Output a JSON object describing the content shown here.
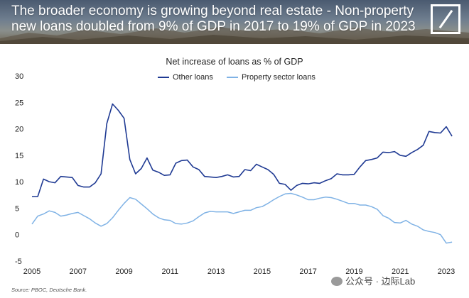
{
  "banner": {
    "title": "The broader economy is growing beyond real estate - Non-property new loans doubled from 9% of GDP in 2017 to 19% of GDP in 2023",
    "logo_icon": "deutsche-bank-logo-icon"
  },
  "chart_data": {
    "type": "line",
    "title": "Net increase of loans as % of GDP",
    "xlabel": "",
    "ylabel": "",
    "xlim": [
      2005,
      2023.5
    ],
    "ylim": [
      -5,
      30
    ],
    "xticks": [
      "2005",
      "2007",
      "2009",
      "2011",
      "2013",
      "2015",
      "2017",
      "2019",
      "2021",
      "2023"
    ],
    "yticks": [
      "30",
      "25",
      "20",
      "15",
      "10",
      "5",
      "0",
      "-5"
    ],
    "grid": false,
    "legend_position": "top-center",
    "series": [
      {
        "name": "Other loans",
        "color": "#1f3a93",
        "x": [
          2005.0,
          2005.25,
          2005.5,
          2005.75,
          2006.0,
          2006.25,
          2006.5,
          2006.75,
          2007.0,
          2007.25,
          2007.5,
          2007.75,
          2008.0,
          2008.25,
          2008.5,
          2008.75,
          2009.0,
          2009.25,
          2009.5,
          2009.75,
          2010.0,
          2010.25,
          2010.5,
          2010.75,
          2011.0,
          2011.25,
          2011.5,
          2011.75,
          2012.0,
          2012.25,
          2012.5,
          2012.75,
          2013.0,
          2013.25,
          2013.5,
          2013.75,
          2014.0,
          2014.25,
          2014.5,
          2014.75,
          2015.0,
          2015.25,
          2015.5,
          2015.75,
          2016.0,
          2016.25,
          2016.5,
          2016.75,
          2017.0,
          2017.25,
          2017.5,
          2017.75,
          2018.0,
          2018.25,
          2018.5,
          2018.75,
          2019.0,
          2019.25,
          2019.5,
          2019.75,
          2020.0,
          2020.25,
          2020.5,
          2020.75,
          2021.0,
          2021.25,
          2021.5,
          2021.75,
          2022.0,
          2022.25,
          2022.5,
          2022.75,
          2023.0,
          2023.25
        ],
        "values": [
          7.2,
          7.2,
          10.5,
          10.0,
          9.8,
          11.0,
          10.9,
          10.8,
          9.3,
          9.0,
          9.0,
          9.8,
          11.5,
          21.0,
          24.7,
          23.5,
          22.0,
          14.2,
          11.5,
          12.5,
          14.5,
          12.2,
          11.8,
          11.2,
          11.3,
          13.5,
          14.0,
          14.1,
          12.8,
          12.3,
          11.0,
          10.9,
          10.8,
          11.0,
          11.3,
          10.9,
          11.0,
          12.3,
          12.1,
          13.3,
          12.8,
          12.3,
          11.4,
          9.7,
          9.5,
          8.4,
          9.3,
          9.7,
          9.6,
          9.8,
          9.7,
          10.2,
          10.6,
          11.5,
          11.3,
          11.3,
          11.4,
          12.8,
          14.0,
          14.2,
          14.5,
          15.6,
          15.5,
          15.7,
          15.0,
          14.8,
          15.5,
          16.1,
          16.9,
          19.5,
          19.3,
          19.2,
          20.4,
          18.6
        ]
      },
      {
        "name": "Property sector loans",
        "color": "#7fb2e5",
        "x": [
          2005.0,
          2005.25,
          2005.5,
          2005.75,
          2006.0,
          2006.25,
          2006.5,
          2006.75,
          2007.0,
          2007.25,
          2007.5,
          2007.75,
          2008.0,
          2008.25,
          2008.5,
          2008.75,
          2009.0,
          2009.25,
          2009.5,
          2009.75,
          2010.0,
          2010.25,
          2010.5,
          2010.75,
          2011.0,
          2011.25,
          2011.5,
          2011.75,
          2012.0,
          2012.25,
          2012.5,
          2012.75,
          2013.0,
          2013.25,
          2013.5,
          2013.75,
          2014.0,
          2014.25,
          2014.5,
          2014.75,
          2015.0,
          2015.25,
          2015.5,
          2015.75,
          2016.0,
          2016.25,
          2016.5,
          2016.75,
          2017.0,
          2017.25,
          2017.5,
          2017.75,
          2018.0,
          2018.25,
          2018.5,
          2018.75,
          2019.0,
          2019.25,
          2019.5,
          2019.75,
          2020.0,
          2020.25,
          2020.5,
          2020.75,
          2021.0,
          2021.25,
          2021.5,
          2021.75,
          2022.0,
          2022.25,
          2022.5,
          2022.75,
          2023.0,
          2023.25
        ],
        "values": [
          2.0,
          3.5,
          3.9,
          4.5,
          4.2,
          3.5,
          3.7,
          4.0,
          4.2,
          3.6,
          3.0,
          2.2,
          1.6,
          2.1,
          3.2,
          4.6,
          5.9,
          7.0,
          6.7,
          5.8,
          4.9,
          3.9,
          3.2,
          2.8,
          2.7,
          2.1,
          2.0,
          2.2,
          2.6,
          3.4,
          4.1,
          4.4,
          4.3,
          4.3,
          4.3,
          4.0,
          4.3,
          4.6,
          4.6,
          5.1,
          5.3,
          5.9,
          6.6,
          7.2,
          7.7,
          7.8,
          7.5,
          7.1,
          6.6,
          6.6,
          6.9,
          7.1,
          7.0,
          6.7,
          6.3,
          5.9,
          5.9,
          5.6,
          5.6,
          5.3,
          4.8,
          3.6,
          3.1,
          2.3,
          2.2,
          2.7,
          2.0,
          1.6,
          0.9,
          0.6,
          0.4,
          0.0,
          -1.6,
          -1.4
        ]
      }
    ]
  },
  "footer": {
    "source": "Source: PBOC, Deutsche Bank.",
    "watermark": "公众号 · 边际Lab",
    "watermark_icon": "wechat-icon"
  }
}
